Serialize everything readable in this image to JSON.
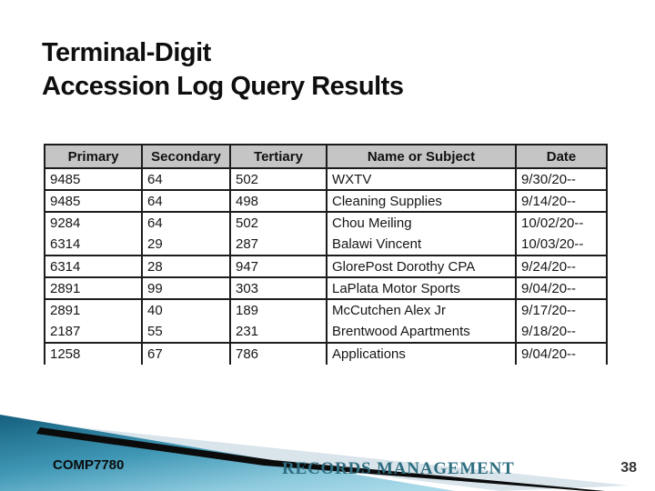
{
  "slide": {
    "title_line1": "Terminal-Digit",
    "title_line2": "Accession Log Query Results",
    "footer": {
      "course_code": "COMP7780",
      "footer_title": "RECORDS MANAGEMENT",
      "page_number": "38"
    },
    "colors": {
      "title_text": "#0e0e0e",
      "table_header_bg": "#c5c5c5",
      "table_border": "#1c1c1c",
      "footer_title_text": "#2e6e80",
      "swoosh_teal_dark": "#14607e",
      "swoosh_teal_mid": "#3f97b5",
      "swoosh_teal_light": "#a8d9e8",
      "swoosh_black": "#0b0b0b",
      "swoosh_pale": "#d9e4eb"
    }
  },
  "table": {
    "headers": [
      "Primary",
      "Secondary",
      "Tertiary",
      "Name or Subject",
      "Date"
    ],
    "rows": [
      {
        "cells": [
          "9485",
          "64",
          "502",
          "WXTV",
          "9/30/20--"
        ],
        "separator_below": true
      },
      {
        "cells": [
          "9485",
          "64",
          "498",
          "Cleaning Supplies",
          "9/14/20--"
        ],
        "separator_below": true
      },
      {
        "cells": [
          "9284",
          "64",
          "502",
          "Chou Meiling",
          "10/02/20--"
        ],
        "separator_below": false
      },
      {
        "cells": [
          "6314",
          "29",
          "287",
          "Balawi Vincent",
          "10/03/20--"
        ],
        "separator_below": true
      },
      {
        "cells": [
          "6314",
          "28",
          "947",
          "GlorePost Dorothy CPA",
          "9/24/20--"
        ],
        "separator_below": true
      },
      {
        "cells": [
          "2891",
          "99",
          "303",
          "LaPlata Motor Sports",
          "9/04/20--"
        ],
        "separator_below": true
      },
      {
        "cells": [
          "2891",
          "40",
          "189",
          "McCutchen Alex Jr",
          "9/17/20--"
        ],
        "separator_below": false
      },
      {
        "cells": [
          "2187",
          "55",
          "231",
          "Brentwood Apartments",
          "9/18/20--"
        ],
        "separator_below": true
      },
      {
        "cells": [
          "1258",
          "67",
          "786",
          "Applications",
          "9/04/20--"
        ],
        "separator_below": false
      }
    ]
  }
}
